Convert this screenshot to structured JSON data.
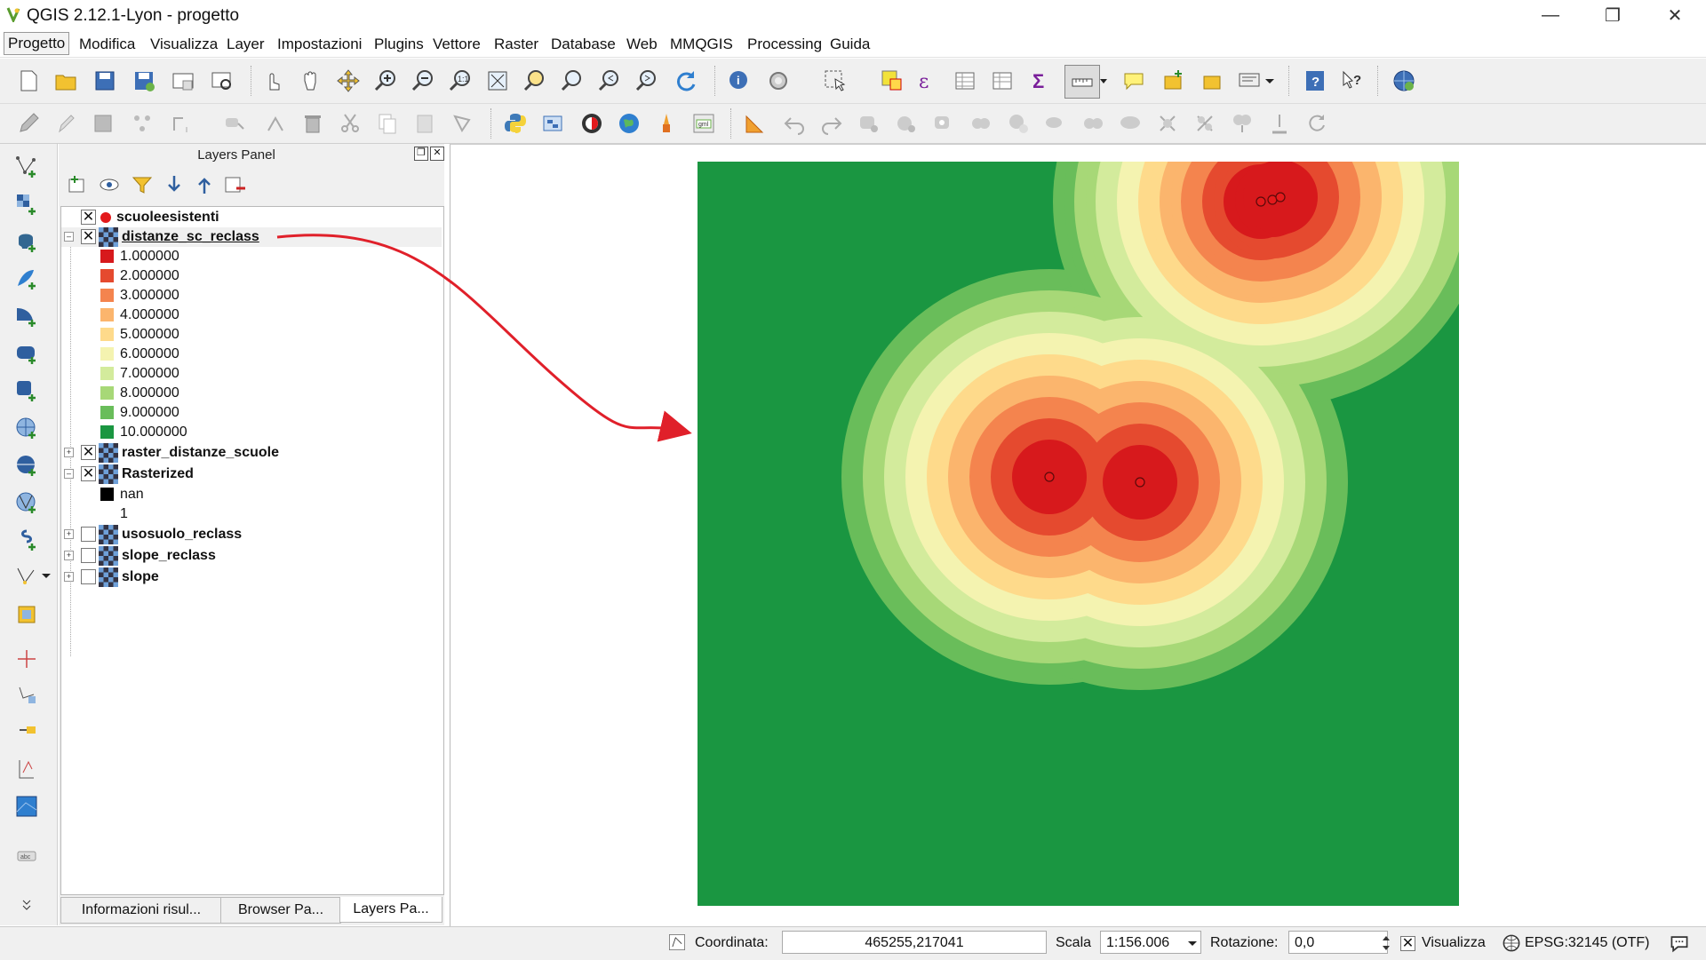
{
  "window": {
    "title": "QGIS 2.12.1-Lyon - progetto"
  },
  "menu": [
    {
      "label": "Progetto",
      "key": "P"
    },
    {
      "label": "Modifica",
      "key": "M"
    },
    {
      "label": "Visualizza",
      "key": "V"
    },
    {
      "label": "Layer",
      "key": "L"
    },
    {
      "label": "Impostazioni",
      "key": "I"
    },
    {
      "label": "Plugins",
      "key": "P"
    },
    {
      "label": "Vettore",
      "key": "e"
    },
    {
      "label": "Raster",
      "key": "R"
    },
    {
      "label": "Database",
      "key": "D"
    },
    {
      "label": "Web",
      "key": "W"
    },
    {
      "label": "MMQGIS",
      "key": ""
    },
    {
      "label": "Processing",
      "key": "o"
    },
    {
      "label": "Guida",
      "key": "G"
    }
  ],
  "panel": {
    "title": "Layers Panel"
  },
  "layers": {
    "scuole": "scuoleesistenti",
    "distanze": "distanze_sc_reclass",
    "raster_distanze": "raster_distanze_scuole",
    "rasterized": "Rasterized",
    "usosuolo": "usosuolo_reclass",
    "slope_reclass": "slope_reclass",
    "slope": "slope"
  },
  "classes": [
    {
      "label": "1.000000",
      "color": "#d7191c"
    },
    {
      "label": "2.000000",
      "color": "#e54a2f"
    },
    {
      "label": "3.000000",
      "color": "#f4844e"
    },
    {
      "label": "4.000000",
      "color": "#fbb56d"
    },
    {
      "label": "5.000000",
      "color": "#feda8b"
    },
    {
      "label": "6.000000",
      "color": "#f4f3b0"
    },
    {
      "label": "7.000000",
      "color": "#d3eb9c"
    },
    {
      "label": "8.000000",
      "color": "#a7d877"
    },
    {
      "label": "9.000000",
      "color": "#69bd5a"
    },
    {
      "label": "10.000000",
      "color": "#1a9641"
    }
  ],
  "rasterized_classes": [
    {
      "label": "nan",
      "color": "#000000"
    },
    {
      "label": "1",
      "color": ""
    }
  ],
  "bottom_tabs": [
    "Informazioni risul...",
    "Browser Pa...",
    "Layers Pa..."
  ],
  "status": {
    "coord_label": "Coordinata:",
    "coord_value": "465255,217041",
    "scale_label": "Scala",
    "scale_value": "1:156.006",
    "rotation_label": "Rotazione:",
    "rotation_value": "0,0",
    "render_label": "Visualizza",
    "crs": "EPSG:32145 (OTF)"
  }
}
